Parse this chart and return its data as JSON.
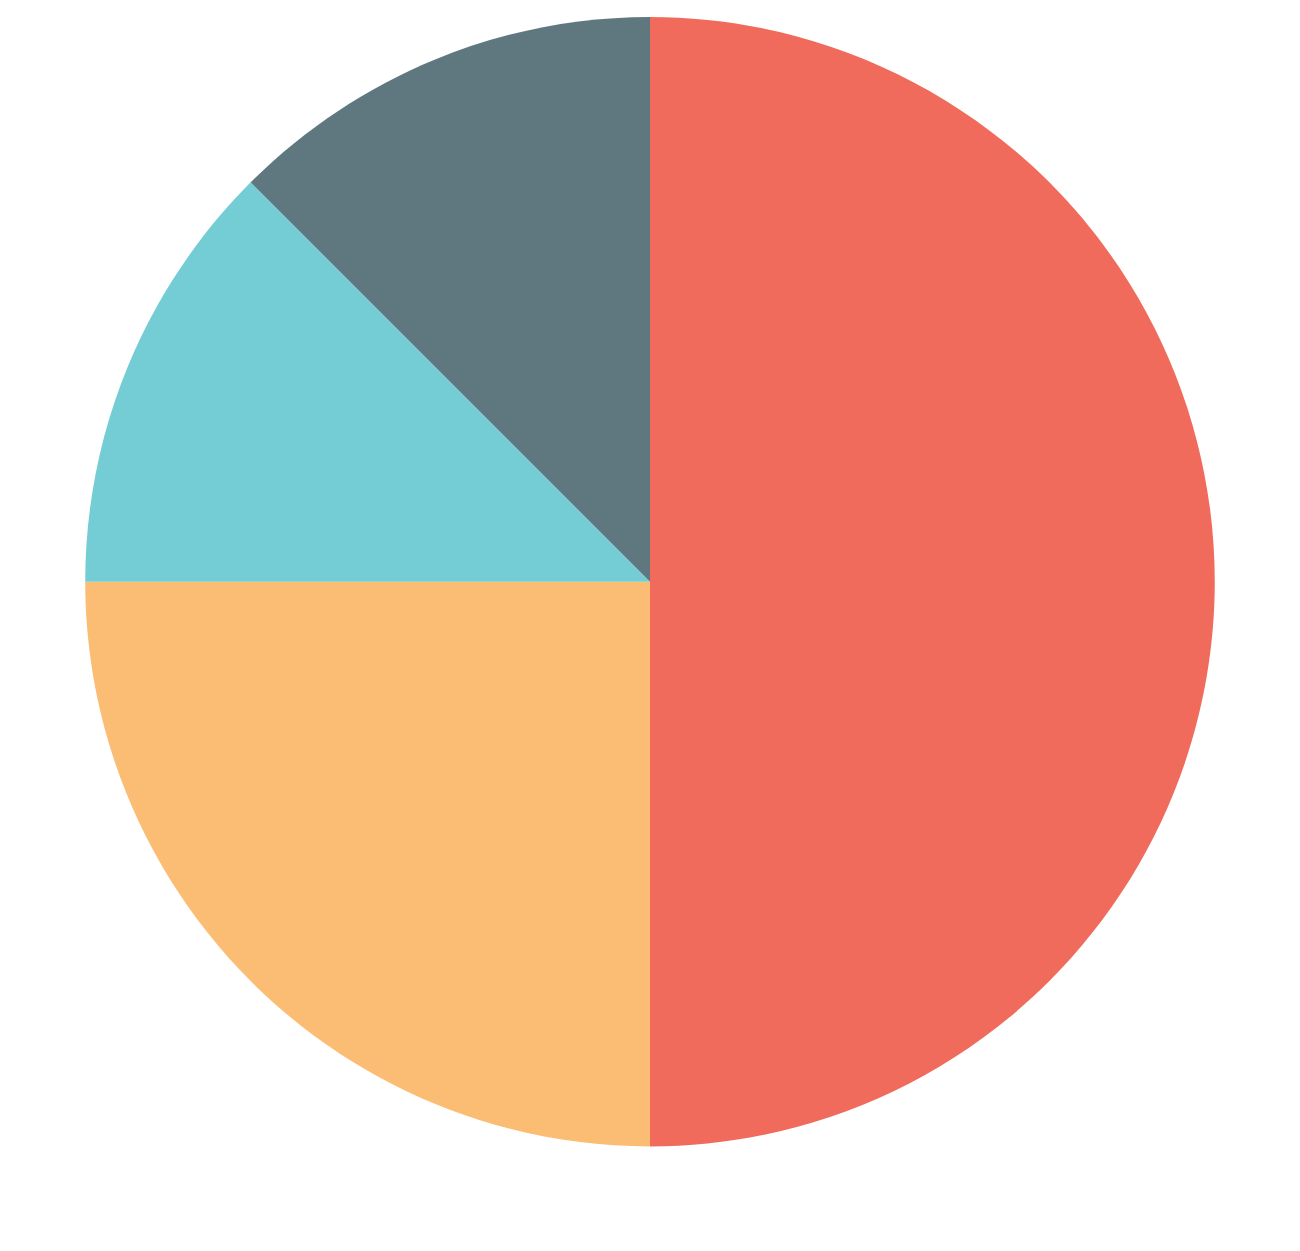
{
  "chart_data": {
    "type": "pie",
    "categories": [
      null,
      null,
      null,
      null
    ],
    "values": [
      50,
      25,
      12.5,
      12.5
    ],
    "colors": [
      "#f16b5c",
      "#fbbd74",
      "#74ccd4",
      "#5f7880"
    ]
  }
}
